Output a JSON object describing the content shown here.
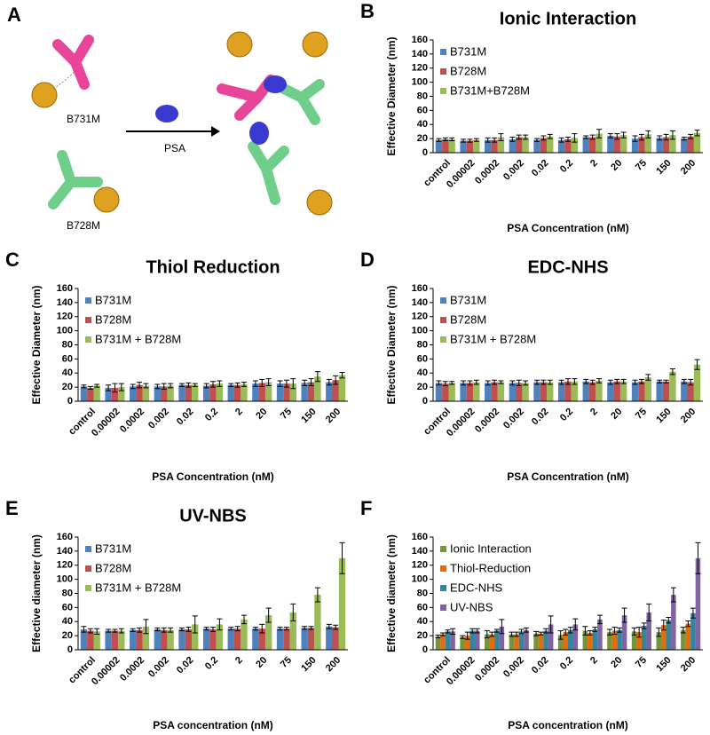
{
  "diagram": {
    "panel": "A",
    "labels": [
      "B731M",
      "B728M",
      "PSA"
    ]
  },
  "chart_data": [
    {
      "type": "bar",
      "panel": "B",
      "title": "Ionic Interaction",
      "ylabel": "Effective Diameter (nm)",
      "xlabel": "PSA Concentration (nM)",
      "categories": [
        "control",
        "0.00002",
        "0.0002",
        "0.002",
        "0.02",
        "0.2",
        "2",
        "20",
        "75",
        "150",
        "200"
      ],
      "ylim": [
        0,
        160
      ],
      "yticks": [
        0,
        20,
        40,
        60,
        80,
        100,
        120,
        140,
        160
      ],
      "grid": false,
      "legend": "upper left",
      "series": [
        {
          "name": "B731M",
          "color": "#4f81bd",
          "values": [
            18,
            17,
            18,
            19,
            18,
            18,
            22,
            24,
            20,
            21,
            20
          ],
          "errors": [
            2,
            2,
            3,
            3,
            2,
            3,
            2,
            3,
            4,
            3,
            2
          ]
        },
        {
          "name": "B728M",
          "color": "#c0504d",
          "values": [
            19,
            17,
            18,
            22,
            21,
            19,
            22,
            23,
            22,
            22,
            23
          ],
          "errors": [
            2,
            2,
            3,
            3,
            3,
            3,
            3,
            4,
            4,
            4,
            3
          ]
        },
        {
          "name": "B731M+B728M",
          "color": "#9bbb59",
          "values": [
            19,
            18,
            22,
            22,
            23,
            21,
            27,
            25,
            26,
            25,
            28
          ],
          "errors": [
            2,
            2,
            5,
            3,
            3,
            6,
            6,
            4,
            5,
            6,
            4
          ]
        }
      ]
    },
    {
      "type": "bar",
      "panel": "C",
      "title": "Thiol Reduction",
      "ylabel": "Effective Diameter (nm)",
      "xlabel": "PSA Concentration (nM)",
      "categories": [
        "control",
        "0.00002",
        "0.0002",
        "0.002",
        "0.02",
        "0.2",
        "2",
        "20",
        "75",
        "150",
        "200"
      ],
      "ylim": [
        0,
        160
      ],
      "yticks": [
        0,
        20,
        40,
        60,
        80,
        100,
        120,
        140,
        160
      ],
      "grid": false,
      "legend": "upper left",
      "series": [
        {
          "name": "B731M",
          "color": "#4f81bd",
          "values": [
            21,
            19,
            21,
            21,
            23,
            22,
            23,
            25,
            25,
            26,
            27
          ],
          "errors": [
            2,
            4,
            3,
            3,
            2,
            3,
            2,
            4,
            4,
            4,
            4
          ]
        },
        {
          "name": "B728M",
          "color": "#c0504d",
          "values": [
            19,
            19,
            23,
            21,
            23,
            24,
            23,
            26,
            25,
            27,
            30
          ],
          "errors": [
            2,
            6,
            4,
            4,
            3,
            4,
            3,
            5,
            5,
            5,
            6
          ]
        },
        {
          "name": "B731M + B728M",
          "color": "#9bbb59",
          "values": [
            22,
            20,
            22,
            22,
            23,
            25,
            24,
            27,
            25,
            35,
            37
          ],
          "errors": [
            2,
            5,
            3,
            3,
            2,
            4,
            3,
            5,
            7,
            7,
            4
          ]
        }
      ]
    },
    {
      "type": "bar",
      "panel": "D",
      "title": "EDC-NHS",
      "ylabel": "Effective Diameter (nm)",
      "xlabel": "PSA Concentration (nM)",
      "categories": [
        "control",
        "0.00002",
        "0.0002",
        "0.002",
        "0.02",
        "0.2",
        "2",
        "20",
        "75",
        "150",
        "200"
      ],
      "ylim": [
        0,
        160
      ],
      "yticks": [
        0,
        20,
        40,
        60,
        80,
        100,
        120,
        140,
        160
      ],
      "grid": false,
      "legend": "upper left",
      "series": [
        {
          "name": "B731M",
          "color": "#4f81bd",
          "values": [
            26,
            26,
            26,
            26,
            27,
            27,
            28,
            27,
            27,
            28,
            28
          ],
          "errors": [
            3,
            3,
            3,
            3,
            3,
            3,
            3,
            3,
            3,
            2,
            3
          ]
        },
        {
          "name": "B728M",
          "color": "#c0504d",
          "values": [
            25,
            26,
            27,
            26,
            27,
            28,
            27,
            28,
            28,
            28,
            27
          ],
          "errors": [
            3,
            3,
            3,
            4,
            3,
            4,
            3,
            3,
            3,
            2,
            4
          ]
        },
        {
          "name": "B731M + B728M",
          "color": "#9bbb59",
          "values": [
            26,
            27,
            27,
            26,
            27,
            28,
            29,
            28,
            34,
            42,
            52
          ],
          "errors": [
            2,
            3,
            2,
            3,
            3,
            4,
            3,
            3,
            4,
            4,
            7
          ]
        }
      ]
    },
    {
      "type": "bar",
      "panel": "E",
      "title": "UV-NBS",
      "ylabel": "Effective diameter (nm)",
      "xlabel": "PSA concentration (nM)",
      "categories": [
        "control",
        "0.00002",
        "0.0002",
        "0.002",
        "0.02",
        "0.2",
        "2",
        "20",
        "75",
        "150",
        "200"
      ],
      "ylim": [
        0,
        160
      ],
      "yticks": [
        0,
        20,
        40,
        60,
        80,
        100,
        120,
        140,
        160
      ],
      "grid": false,
      "legend": "upper left",
      "series": [
        {
          "name": "B731M",
          "color": "#4f81bd",
          "values": [
            29,
            27,
            28,
            29,
            29,
            30,
            30,
            30,
            30,
            31,
            33
          ],
          "errors": [
            4,
            2,
            2,
            2,
            2,
            2,
            2,
            2,
            2,
            2,
            3
          ]
        },
        {
          "name": "B728M",
          "color": "#c0504d",
          "values": [
            27,
            27,
            28,
            28,
            29,
            29,
            30,
            30,
            30,
            31,
            32
          ],
          "errors": [
            3,
            2,
            3,
            3,
            3,
            3,
            3,
            6,
            2,
            2,
            3
          ]
        },
        {
          "name": "B731M + B728M",
          "color": "#9bbb59",
          "values": [
            26,
            27,
            33,
            28,
            36,
            36,
            43,
            49,
            53,
            78,
            130
          ],
          "errors": [
            4,
            3,
            10,
            3,
            12,
            8,
            6,
            10,
            12,
            10,
            22
          ]
        }
      ]
    },
    {
      "type": "bar",
      "panel": "F",
      "ylabel": "Effective diameter (nm)",
      "xlabel": "PSA concentration (nM)",
      "categories": [
        "control",
        "0.00002",
        "0.0002",
        "0.002",
        "0.02",
        "0.2",
        "2",
        "20",
        "75",
        "150",
        "200"
      ],
      "ylim": [
        0,
        160
      ],
      "yticks": [
        0,
        20,
        40,
        60,
        80,
        100,
        120,
        140,
        160
      ],
      "grid": false,
      "legend": "upper left",
      "series": [
        {
          "name": "Ionic Interaction",
          "color": "#77933c",
          "values": [
            19,
            18,
            22,
            22,
            23,
            21,
            27,
            25,
            26,
            25,
            28
          ],
          "errors": [
            2,
            2,
            5,
            3,
            3,
            6,
            6,
            4,
            5,
            6,
            4
          ]
        },
        {
          "name": "Thiol-Reduction",
          "color": "#e46c0a",
          "values": [
            22,
            20,
            22,
            22,
            23,
            25,
            24,
            27,
            25,
            35,
            37
          ],
          "errors": [
            2,
            5,
            3,
            3,
            2,
            4,
            3,
            5,
            7,
            7,
            4
          ]
        },
        {
          "name": "EDC-NHS",
          "color": "#31859c",
          "values": [
            26,
            27,
            27,
            26,
            27,
            28,
            29,
            28,
            34,
            42,
            52
          ],
          "errors": [
            2,
            3,
            2,
            3,
            3,
            4,
            3,
            3,
            4,
            4,
            7
          ]
        },
        {
          "name": "UV-NBS",
          "color": "#8064a2",
          "values": [
            26,
            27,
            33,
            28,
            36,
            36,
            43,
            49,
            53,
            78,
            130
          ],
          "errors": [
            4,
            3,
            10,
            3,
            12,
            8,
            6,
            10,
            12,
            10,
            22
          ]
        }
      ]
    }
  ]
}
